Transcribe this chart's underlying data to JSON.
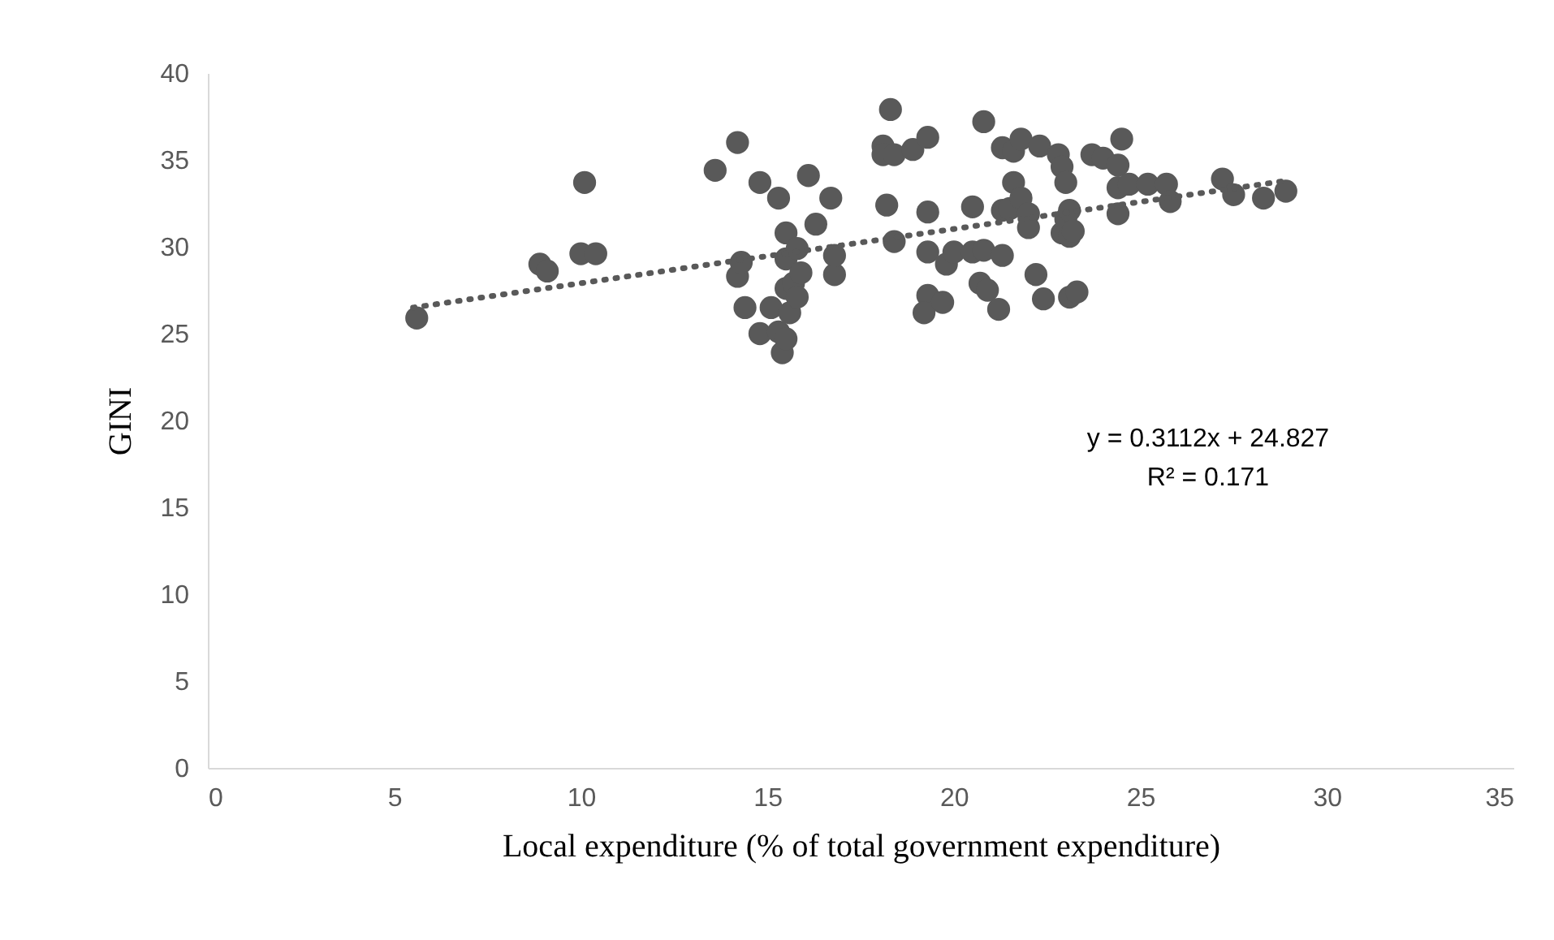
{
  "chart_data": {
    "type": "scatter",
    "xlabel": "Local expenditure (% of total government expenditure)",
    "ylabel": "GINI",
    "xlim": [
      0,
      35
    ],
    "xticks": [
      0,
      5,
      10,
      15,
      20,
      25,
      30,
      35
    ],
    "ylim": [
      0,
      40
    ],
    "yticks": [
      0,
      5,
      10,
      15,
      20,
      25,
      30,
      35,
      40
    ],
    "grid": false,
    "series": [
      {
        "color": "#595959",
        "marker": "circle",
        "x": [
          5.6,
          8.9,
          9.1,
          10.0,
          10.4,
          10.1,
          13.6,
          14.2,
          14.2,
          14.3,
          14.4,
          14.8,
          15.3,
          14.8,
          15.1,
          15.3,
          15.4,
          15.5,
          15.6,
          15.5,
          15.7,
          15.5,
          15.5,
          15.8,
          15.8,
          15.9,
          16.1,
          16.3,
          16.7,
          16.8,
          16.8,
          18.1,
          18.1,
          18.2,
          18.3,
          18.4,
          18.4,
          18.9,
          19.3,
          19.3,
          19.3,
          19.3,
          19.2,
          19.7,
          19.8,
          20.0,
          20.5,
          20.5,
          20.8,
          20.8,
          20.7,
          20.9,
          21.2,
          21.3,
          21.3,
          21.3,
          21.5,
          21.6,
          21.6,
          21.8,
          21.8,
          22.0,
          22.0,
          22.3,
          22.2,
          22.4,
          22.8,
          22.9,
          23.0,
          22.9,
          23.0,
          23.1,
          23.1,
          23.2,
          23.1,
          23.3,
          23.7,
          24.0,
          24.4,
          24.4,
          24.5,
          24.4,
          24.7,
          25.2,
          25.7,
          25.8,
          27.2,
          27.5,
          28.3,
          28.9
        ],
        "values": [
          25.9,
          29.0,
          28.6,
          29.6,
          29.6,
          33.7,
          34.4,
          36.0,
          28.3,
          29.1,
          26.5,
          33.7,
          32.8,
          25.0,
          26.5,
          25.1,
          23.9,
          24.7,
          26.2,
          27.6,
          27.9,
          29.3,
          30.8,
          29.9,
          27.1,
          28.5,
          34.1,
          31.3,
          32.8,
          28.4,
          29.5,
          35.8,
          35.3,
          32.4,
          37.9,
          35.3,
          30.3,
          35.6,
          36.3,
          32.0,
          29.7,
          27.2,
          26.2,
          26.8,
          29.0,
          29.7,
          29.7,
          32.3,
          29.8,
          37.2,
          27.9,
          27.5,
          26.4,
          29.5,
          35.7,
          32.1,
          32.2,
          33.7,
          35.5,
          36.2,
          32.8,
          31.9,
          31.1,
          35.8,
          28.4,
          27.0,
          35.3,
          34.6,
          33.7,
          30.8,
          31.6,
          32.1,
          30.6,
          30.9,
          27.1,
          27.4,
          35.3,
          35.1,
          34.7,
          33.4,
          36.2,
          31.9,
          33.6,
          33.6,
          33.6,
          32.6,
          33.9,
          33.0,
          32.8,
          33.2
        ]
      },
      {
        "type": "line",
        "color": "#595959",
        "line_style": "dotted",
        "x": [
          5.5,
          28.9
        ],
        "values": [
          26.5,
          33.8
        ]
      }
    ],
    "annotations": [
      "y = 0.3112x + 24.827",
      "R² = 0.171"
    ]
  }
}
